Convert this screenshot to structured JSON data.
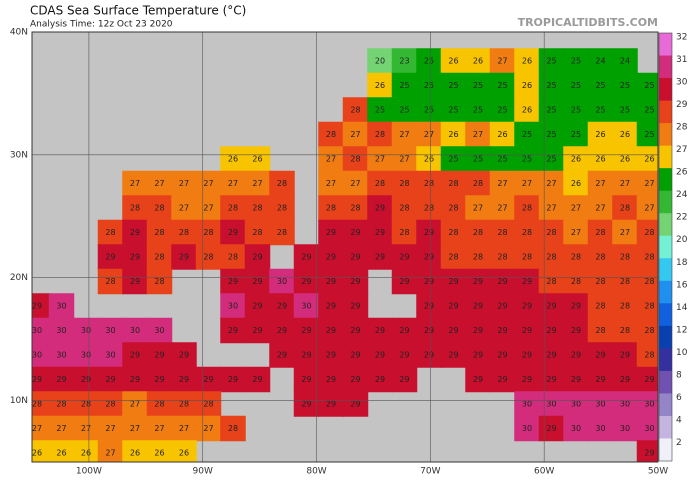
{
  "chart_data": {
    "type": "sst-map",
    "title": "CDAS Sea Surface Temperature (°C)",
    "subtitle": "Analysis Time: 12z Oct 23 2020",
    "watermark": "TROPICALTIDBITS.COM",
    "land_color": "#c4c4c4",
    "xlim": [
      -105,
      -50
    ],
    "ylim": [
      5,
      40
    ],
    "xticks": [
      {
        "value": -100,
        "label": "100W"
      },
      {
        "value": -90,
        "label": "90W"
      },
      {
        "value": -80,
        "label": "80W"
      },
      {
        "value": -70,
        "label": "70W"
      },
      {
        "value": -60,
        "label": "60W"
      },
      {
        "value": -50,
        "label": "50W"
      }
    ],
    "yticks": [
      {
        "value": 40,
        "label": "40N"
      },
      {
        "value": 30,
        "label": "30N"
      },
      {
        "value": 20,
        "label": "20N"
      },
      {
        "value": 10,
        "label": "10N"
      }
    ],
    "colorbar": {
      "ticks": [
        32,
        31,
        30,
        29,
        28,
        27,
        26,
        24,
        22,
        20,
        18,
        16,
        14,
        12,
        10,
        8,
        6,
        4,
        2
      ],
      "colors": [
        "#e86ad8",
        "#d42c7c",
        "#c8102e",
        "#e8421a",
        "#f07c12",
        "#f8c400",
        "#00a000",
        "#34b834",
        "#74d474",
        "#74f0d4",
        "#34c8f0",
        "#2090f0",
        "#1060e0",
        "#0840b0",
        "#3430a0",
        "#7050b0",
        "#9484c8",
        "#c4b4e0",
        "#f0f0f8"
      ]
    },
    "grid": [
      [
        null,
        null,
        null,
        null,
        null,
        null,
        null,
        null,
        null,
        null,
        null,
        null,
        null,
        null,
        20,
        23,
        25,
        26,
        26,
        27,
        26,
        25,
        25,
        24,
        24,
        null
      ],
      [
        null,
        null,
        null,
        null,
        null,
        null,
        null,
        null,
        null,
        null,
        null,
        null,
        null,
        null,
        26,
        25,
        25,
        25,
        25,
        25,
        26,
        25,
        25,
        25,
        25,
        25
      ],
      [
        null,
        null,
        null,
        null,
        null,
        null,
        null,
        null,
        null,
        null,
        null,
        null,
        null,
        28,
        25,
        25,
        25,
        25,
        25,
        25,
        26,
        25,
        25,
        25,
        25,
        25
      ],
      [
        null,
        null,
        null,
        null,
        null,
        null,
        null,
        null,
        null,
        null,
        null,
        null,
        28,
        27,
        28,
        27,
        27,
        26,
        27,
        26,
        25,
        25,
        25,
        26,
        26,
        25
      ],
      [
        null,
        null,
        null,
        null,
        null,
        null,
        null,
        null,
        26,
        26,
        null,
        null,
        27,
        28,
        27,
        27,
        26,
        25,
        25,
        25,
        25,
        25,
        26,
        26,
        26,
        26
      ],
      [
        null,
        null,
        null,
        null,
        27,
        27,
        27,
        27,
        27,
        27,
        28,
        null,
        27,
        27,
        28,
        28,
        28,
        28,
        28,
        27,
        27,
        27,
        26,
        27,
        27,
        27
      ],
      [
        null,
        null,
        null,
        null,
        28,
        28,
        27,
        27,
        28,
        28,
        28,
        null,
        28,
        28,
        29,
        28,
        28,
        28,
        27,
        27,
        28,
        27,
        27,
        27,
        28,
        27
      ],
      [
        null,
        null,
        null,
        28,
        29,
        28,
        28,
        28,
        29,
        28,
        28,
        null,
        29,
        29,
        29,
        28,
        29,
        28,
        28,
        28,
        28,
        28,
        27,
        28,
        27,
        28
      ],
      [
        null,
        null,
        null,
        29,
        29,
        28,
        29,
        28,
        28,
        29,
        null,
        29,
        29,
        29,
        29,
        29,
        29,
        28,
        28,
        28,
        28,
        28,
        28,
        28,
        28,
        28
      ],
      [
        null,
        null,
        null,
        28,
        29,
        28,
        null,
        null,
        29,
        29,
        30,
        29,
        29,
        29,
        null,
        29,
        29,
        29,
        29,
        29,
        29,
        28,
        28,
        28,
        28,
        28
      ],
      [
        29,
        30,
        null,
        null,
        null,
        null,
        null,
        null,
        30,
        29,
        29,
        30,
        29,
        29,
        null,
        null,
        29,
        29,
        29,
        29,
        29,
        29,
        29,
        28,
        28,
        28
      ],
      [
        30,
        30,
        30,
        30,
        30,
        30,
        null,
        null,
        29,
        29,
        29,
        29,
        29,
        29,
        29,
        29,
        29,
        29,
        29,
        29,
        29,
        29,
        29,
        28,
        28,
        28
      ],
      [
        30,
        30,
        30,
        30,
        29,
        29,
        29,
        null,
        null,
        null,
        29,
        29,
        29,
        29,
        29,
        29,
        29,
        29,
        29,
        29,
        29,
        29,
        29,
        29,
        29,
        28
      ],
      [
        29,
        29,
        29,
        29,
        29,
        29,
        29,
        29,
        29,
        29,
        null,
        29,
        29,
        29,
        29,
        29,
        null,
        null,
        29,
        29,
        29,
        29,
        29,
        29,
        29,
        29
      ],
      [
        28,
        28,
        28,
        28,
        27,
        28,
        28,
        28,
        null,
        null,
        null,
        29,
        29,
        29,
        null,
        null,
        null,
        null,
        null,
        null,
        30,
        30,
        30,
        30,
        30,
        30
      ],
      [
        27,
        27,
        27,
        27,
        27,
        27,
        27,
        27,
        28,
        null,
        null,
        null,
        null,
        null,
        null,
        null,
        null,
        null,
        null,
        null,
        30,
        29,
        30,
        30,
        30,
        30
      ],
      [
        26,
        26,
        26,
        27,
        26,
        26,
        26,
        null,
        null,
        null,
        null,
        null,
        null,
        null,
        null,
        null,
        null,
        null,
        null,
        null,
        null,
        null,
        null,
        null,
        null,
        29
      ]
    ]
  }
}
